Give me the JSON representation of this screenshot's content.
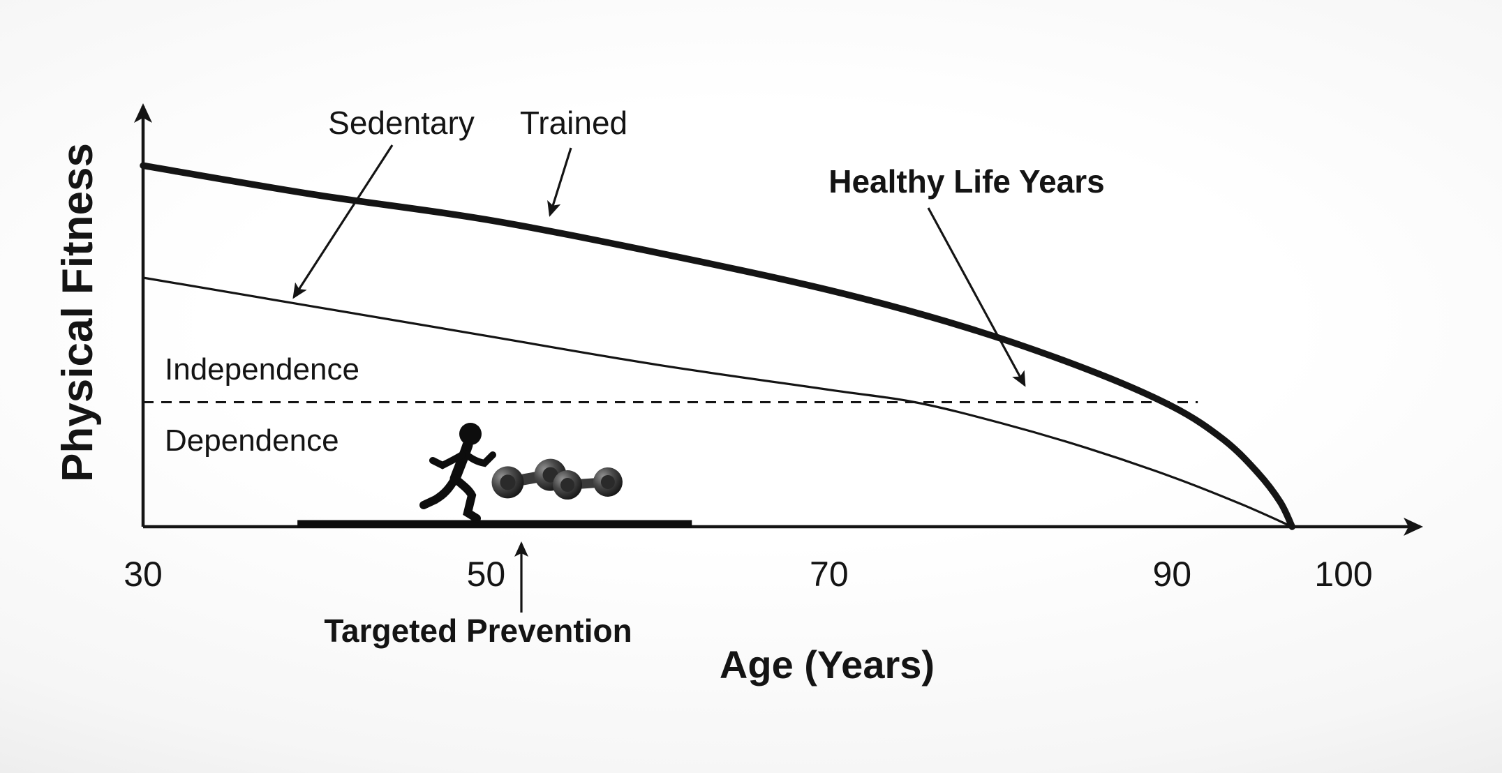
{
  "figure": {
    "ylabel": "Physical Fitness",
    "xlabel": "Age (Years)",
    "curve_labels": {
      "sedentary": "Sedentary",
      "trained": "Trained"
    },
    "annotations": {
      "healthy_life_years": "Healthy Life Years",
      "independence": "Independence",
      "dependence": "Dependence",
      "targeted_prevention": "Targeted Prevention"
    },
    "colors": {
      "ink": "#141414"
    }
  },
  "chart_data": {
    "type": "line",
    "title": "",
    "xlabel": "Age (Years)",
    "ylabel": "Physical Fitness",
    "xlim": [
      30,
      105
    ],
    "ylim": [
      0,
      100
    ],
    "x_ticks": [
      30,
      50,
      70,
      90,
      100
    ],
    "grid": false,
    "legend": "labels with arrows inside plot",
    "series": [
      {
        "name": "Trained",
        "line_weight": "thick",
        "points": [
          [
            30,
            87
          ],
          [
            40,
            80
          ],
          [
            50,
            74
          ],
          [
            60,
            66
          ],
          [
            70,
            57
          ],
          [
            78,
            48
          ],
          [
            85,
            38
          ],
          [
            90,
            29
          ],
          [
            93,
            21
          ],
          [
            95,
            13
          ],
          [
            96.3,
            6
          ],
          [
            97,
            0
          ]
        ]
      },
      {
        "name": "Sedentary",
        "line_weight": "thin",
        "points": [
          [
            30,
            60
          ],
          [
            40,
            53
          ],
          [
            50,
            46
          ],
          [
            60,
            39
          ],
          [
            70,
            33
          ],
          [
            75,
            30
          ],
          [
            80,
            25
          ],
          [
            85,
            19
          ],
          [
            90,
            12
          ],
          [
            94,
            5.5
          ],
          [
            97,
            0
          ]
        ]
      }
    ],
    "threshold_line": {
      "style": "dashed",
      "y": 30,
      "x_start": 30,
      "x_end": 91.5,
      "label_above": "Independence",
      "label_below": "Dependence"
    },
    "annotations": [
      {
        "text": "Sedentary",
        "points_to": "thin curve"
      },
      {
        "text": "Trained",
        "points_to": "thick curve"
      },
      {
        "text": "Healthy Life Years",
        "points_to": "region between curves above threshold"
      },
      {
        "text": "Targeted Prevention",
        "points_to": "intervention bar on age axis"
      }
    ],
    "intervention_bar": {
      "x_start": 39,
      "x_end": 62
    },
    "icons": [
      "runner-icon",
      "dumbbell-icon"
    ]
  }
}
